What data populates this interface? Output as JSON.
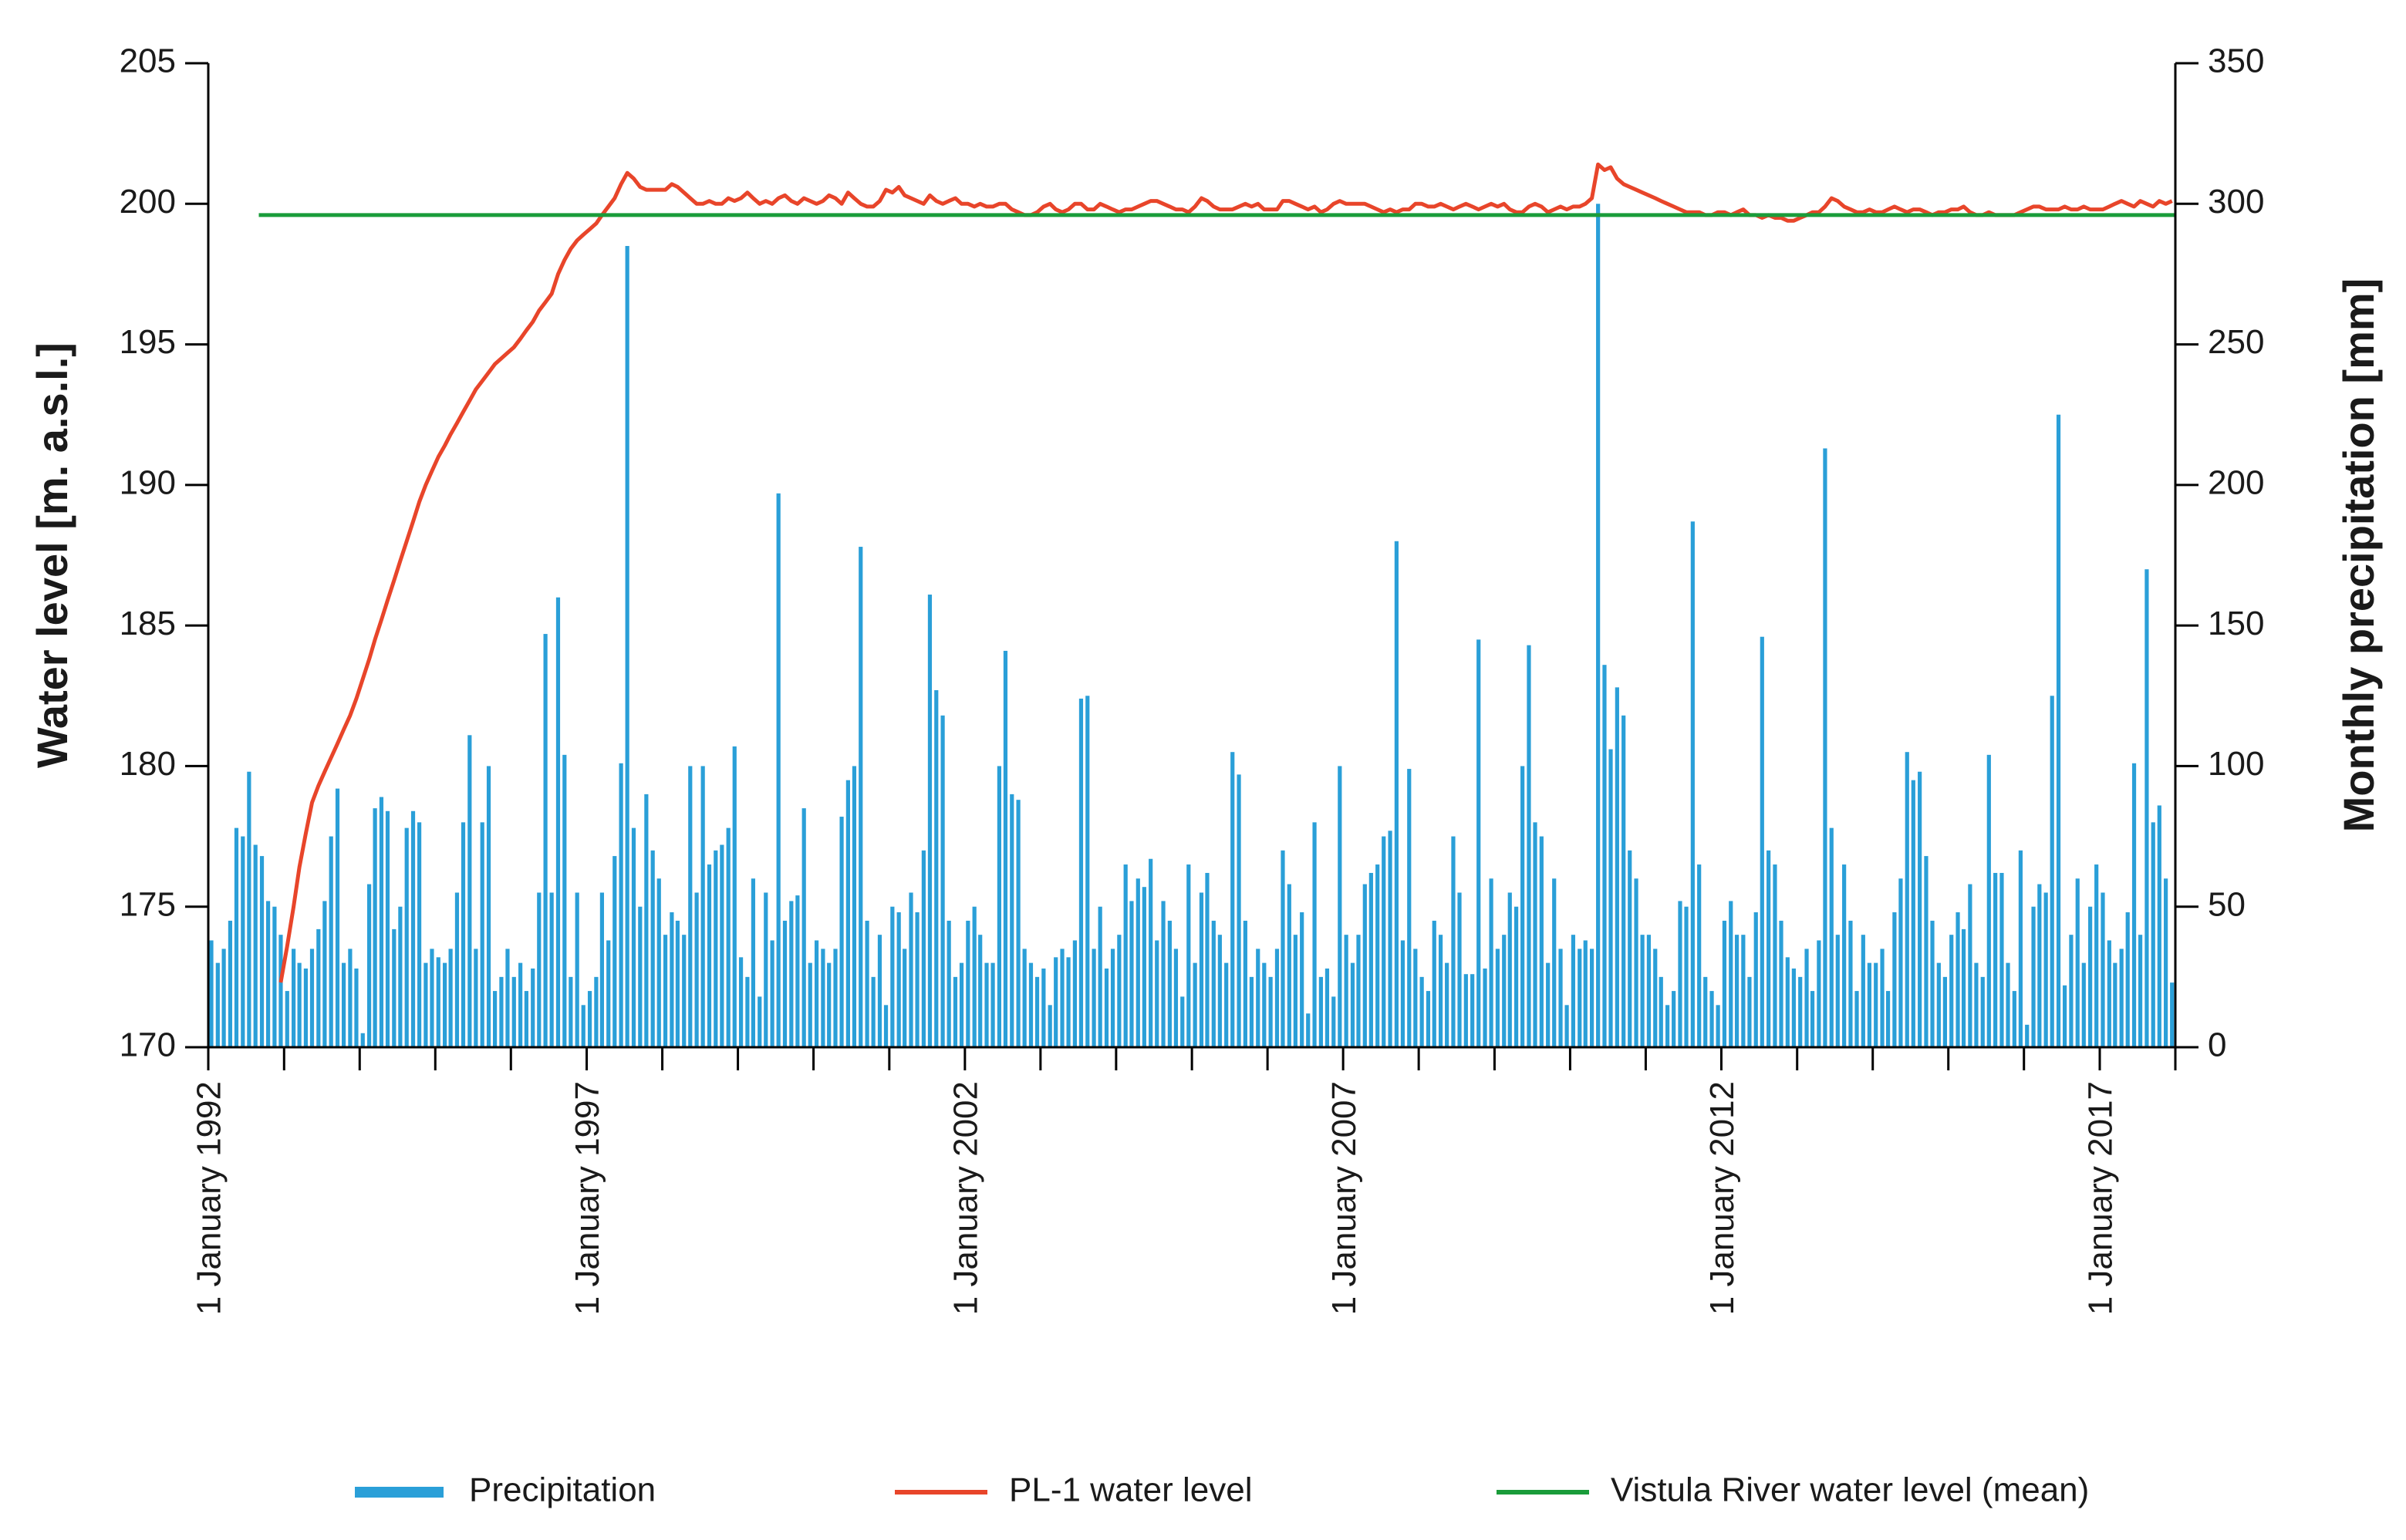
{
  "chart_data": {
    "type": "bar",
    "y_label": "Water level [m. a.s.l.]",
    "y2_label": "Monthly precipitation [mm]",
    "xlim": [
      "1992-01-01",
      "2018-01-01"
    ],
    "ylim": [
      170,
      205
    ],
    "yticks": [
      170,
      175,
      180,
      185,
      190,
      195,
      200,
      205
    ],
    "y2lim": [
      0,
      350
    ],
    "y2ticks": [
      0,
      50,
      100,
      150,
      200,
      250,
      300,
      350
    ],
    "xticks": [
      {
        "value": "1992-01-01",
        "label": "1 January 1992"
      },
      {
        "value": "1997-01-01",
        "label": "1 January 1997"
      },
      {
        "value": "2002-01-01",
        "label": "1 January 2002"
      },
      {
        "value": "2007-01-01",
        "label": "1 January 2007"
      },
      {
        "value": "2012-01-01",
        "label": "1 January 2012"
      },
      {
        "value": "2017-01-01",
        "label": "1 January 2017"
      }
    ],
    "xminorticks": [
      "1993-01-01",
      "1994-01-01",
      "1995-01-01",
      "1996-01-01",
      "1998-01-01",
      "1999-01-01",
      "2000-01-01",
      "2001-01-01",
      "2003-01-01",
      "2004-01-01",
      "2005-01-01",
      "2006-01-01",
      "2008-01-01",
      "2009-01-01",
      "2010-01-01",
      "2011-01-01",
      "2013-01-01",
      "2014-01-01",
      "2015-01-01",
      "2016-01-01",
      "2018-01-01"
    ],
    "legend": "bottom",
    "x": [
      "1992-01",
      "1992-02",
      "1992-03",
      "1992-04",
      "1992-05",
      "1992-06",
      "1992-07",
      "1992-08",
      "1992-09",
      "1992-10",
      "1992-11",
      "1992-12",
      "1993-01",
      "1993-02",
      "1993-03",
      "1993-04",
      "1993-05",
      "1993-06",
      "1993-07",
      "1993-08",
      "1993-09",
      "1993-10",
      "1993-11",
      "1993-12",
      "1994-01",
      "1994-02",
      "1994-03",
      "1994-04",
      "1994-05",
      "1994-06",
      "1994-07",
      "1994-08",
      "1994-09",
      "1994-10",
      "1994-11",
      "1994-12",
      "1995-01",
      "1995-02",
      "1995-03",
      "1995-04",
      "1995-05",
      "1995-06",
      "1995-07",
      "1995-08",
      "1995-09",
      "1995-10",
      "1995-11",
      "1995-12",
      "1996-01",
      "1996-02",
      "1996-03",
      "1996-04",
      "1996-05",
      "1996-06",
      "1996-07",
      "1996-08",
      "1996-09",
      "1996-10",
      "1996-11",
      "1996-12",
      "1997-01",
      "1997-02",
      "1997-03",
      "1997-04",
      "1997-05",
      "1997-06",
      "1997-07",
      "1997-08",
      "1997-09",
      "1997-10",
      "1997-11",
      "1997-12",
      "1998-01",
      "1998-02",
      "1998-03",
      "1998-04",
      "1998-05",
      "1998-06",
      "1998-07",
      "1998-08",
      "1998-09",
      "1998-10",
      "1998-11",
      "1998-12",
      "1999-01",
      "1999-02",
      "1999-03",
      "1999-04",
      "1999-05",
      "1999-06",
      "1999-07",
      "1999-08",
      "1999-09",
      "1999-10",
      "1999-11",
      "1999-12",
      "2000-01",
      "2000-02",
      "2000-03",
      "2000-04",
      "2000-05",
      "2000-06",
      "2000-07",
      "2000-08",
      "2000-09",
      "2000-10",
      "2000-11",
      "2000-12",
      "2001-01",
      "2001-02",
      "2001-03",
      "2001-04",
      "2001-05",
      "2001-06",
      "2001-07",
      "2001-08",
      "2001-09",
      "2001-10",
      "2001-11",
      "2001-12",
      "2002-01",
      "2002-02",
      "2002-03",
      "2002-04",
      "2002-05",
      "2002-06",
      "2002-07",
      "2002-08",
      "2002-09",
      "2002-10",
      "2002-11",
      "2002-12",
      "2003-01",
      "2003-02",
      "2003-03",
      "2003-04",
      "2003-05",
      "2003-06",
      "2003-07",
      "2003-08",
      "2003-09",
      "2003-10",
      "2003-11",
      "2003-12",
      "2004-01",
      "2004-02",
      "2004-03",
      "2004-04",
      "2004-05",
      "2004-06",
      "2004-07",
      "2004-08",
      "2004-09",
      "2004-10",
      "2004-11",
      "2004-12",
      "2005-01",
      "2005-02",
      "2005-03",
      "2005-04",
      "2005-05",
      "2005-06",
      "2005-07",
      "2005-08",
      "2005-09",
      "2005-10",
      "2005-11",
      "2005-12",
      "2006-01",
      "2006-02",
      "2006-03",
      "2006-04",
      "2006-05",
      "2006-06",
      "2006-07",
      "2006-08",
      "2006-09",
      "2006-10",
      "2006-11",
      "2006-12",
      "2007-01",
      "2007-02",
      "2007-03",
      "2007-04",
      "2007-05",
      "2007-06",
      "2007-07",
      "2007-08",
      "2007-09",
      "2007-10",
      "2007-11",
      "2007-12",
      "2008-01",
      "2008-02",
      "2008-03",
      "2008-04",
      "2008-05",
      "2008-06",
      "2008-07",
      "2008-08",
      "2008-09",
      "2008-10",
      "2008-11",
      "2008-12",
      "2009-01",
      "2009-02",
      "2009-03",
      "2009-04",
      "2009-05",
      "2009-06",
      "2009-07",
      "2009-08",
      "2009-09",
      "2009-10",
      "2009-11",
      "2009-12",
      "2010-01",
      "2010-02",
      "2010-03",
      "2010-04",
      "2010-05",
      "2010-06",
      "2010-07",
      "2010-08",
      "2010-09",
      "2010-10",
      "2010-11",
      "2010-12",
      "2011-01",
      "2011-02",
      "2011-03",
      "2011-04",
      "2011-05",
      "2011-06",
      "2011-07",
      "2011-08",
      "2011-09",
      "2011-10",
      "2011-11",
      "2011-12",
      "2012-01",
      "2012-02",
      "2012-03",
      "2012-04",
      "2012-05",
      "2012-06",
      "2012-07",
      "2012-08",
      "2012-09",
      "2012-10",
      "2012-11",
      "2012-12",
      "2013-01",
      "2013-02",
      "2013-03",
      "2013-04",
      "2013-05",
      "2013-06",
      "2013-07",
      "2013-08",
      "2013-09",
      "2013-10",
      "2013-11",
      "2013-12",
      "2014-01",
      "2014-02",
      "2014-03",
      "2014-04",
      "2014-05",
      "2014-06",
      "2014-07",
      "2014-08",
      "2014-09",
      "2014-10",
      "2014-11",
      "2014-12",
      "2015-01",
      "2015-02",
      "2015-03",
      "2015-04",
      "2015-05",
      "2015-06",
      "2015-07",
      "2015-08",
      "2015-09",
      "2015-10",
      "2015-11",
      "2015-12",
      "2016-01",
      "2016-02",
      "2016-03",
      "2016-04",
      "2016-05",
      "2016-06",
      "2016-07",
      "2016-08",
      "2016-09",
      "2016-10",
      "2016-11",
      "2016-12",
      "2017-01",
      "2017-02",
      "2017-03",
      "2017-04",
      "2017-05",
      "2017-06",
      "2017-07",
      "2017-08",
      "2017-09",
      "2017-10",
      "2017-11",
      "2017-12"
    ],
    "series": [
      {
        "name": "Precipitation",
        "type": "bar",
        "axis": "y2",
        "color": "#2a9fd8",
        "values": [
          38,
          30,
          35,
          45,
          78,
          75,
          98,
          72,
          68,
          52,
          50,
          40,
          20,
          35,
          30,
          28,
          35,
          42,
          52,
          75,
          92,
          30,
          35,
          28,
          5,
          58,
          85,
          89,
          84,
          42,
          50,
          78,
          84,
          80,
          30,
          35,
          32,
          30,
          35,
          55,
          80,
          111,
          35,
          80,
          100,
          20,
          25,
          35,
          25,
          30,
          20,
          28,
          55,
          147,
          55,
          160,
          104,
          25,
          55,
          15,
          20,
          25,
          55,
          38,
          68,
          101,
          285,
          78,
          50,
          90,
          70,
          60,
          40,
          48,
          45,
          40,
          100,
          55,
          100,
          65,
          70,
          72,
          78,
          107,
          32,
          25,
          60,
          18,
          55,
          38,
          197,
          45,
          52,
          54,
          85,
          30,
          38,
          35,
          30,
          35,
          82,
          95,
          100,
          178,
          45,
          25,
          40,
          15,
          50,
          48,
          35,
          55,
          48,
          70,
          161,
          127,
          118,
          45,
          25,
          30,
          45,
          50,
          40,
          30,
          30,
          100,
          141,
          90,
          88,
          35,
          30,
          25,
          28,
          15,
          32,
          35,
          32,
          38,
          124,
          125,
          35,
          50,
          28,
          35,
          40,
          65,
          52,
          60,
          57,
          67,
          38,
          52,
          45,
          35,
          18,
          65,
          30,
          55,
          62,
          45,
          40,
          30,
          105,
          97,
          45,
          25,
          35,
          30,
          25,
          35,
          70,
          58,
          40,
          48,
          12,
          80,
          25,
          28,
          18,
          100,
          40,
          30,
          40,
          58,
          62,
          65,
          75,
          77,
          180,
          38,
          99,
          35,
          25,
          20,
          45,
          40,
          30,
          75,
          55,
          26,
          26,
          145,
          28,
          60,
          35,
          40,
          55,
          50,
          100,
          143,
          80,
          75,
          30,
          60,
          35,
          15,
          40,
          35,
          38,
          35,
          300,
          136,
          106,
          128,
          118,
          70,
          60,
          40,
          40,
          35,
          25,
          15,
          20,
          52,
          50,
          187,
          65,
          25,
          20,
          15,
          45,
          52,
          40,
          40,
          25,
          48,
          146,
          70,
          65,
          45,
          32,
          28,
          25,
          35,
          20,
          38,
          213,
          78,
          40,
          65,
          45,
          20,
          40,
          30,
          30,
          35,
          20,
          48,
          60,
          105,
          95,
          98,
          68,
          45,
          30,
          25,
          40,
          48,
          42,
          58,
          30,
          25,
          104,
          62,
          62,
          30,
          20,
          70,
          8,
          50,
          58,
          55,
          125,
          225,
          22,
          40,
          60,
          30,
          50,
          65,
          55,
          38,
          30,
          35,
          48,
          101,
          40,
          170,
          80,
          86,
          60,
          23
        ]
      },
      {
        "name": "PL-1 water level",
        "type": "line",
        "axis": "y",
        "color": "#e8452a",
        "values": [
          null,
          null,
          null,
          null,
          null,
          null,
          null,
          null,
          null,
          null,
          null,
          172.3,
          173.6,
          175.0,
          176.4,
          177.6,
          178.7,
          179.3,
          179.8,
          180.3,
          180.8,
          181.3,
          181.8,
          182.4,
          183.1,
          183.8,
          184.5,
          185.2,
          185.9,
          186.6,
          187.3,
          188.0,
          188.7,
          189.4,
          190.0,
          190.5,
          191.0,
          191.4,
          191.8,
          192.2,
          192.6,
          193.0,
          193.4,
          193.7,
          194.0,
          194.3,
          194.5,
          194.7,
          194.9,
          195.2,
          195.5,
          195.8,
          196.2,
          196.5,
          196.8,
          197.5,
          198.0,
          198.4,
          198.7,
          198.9,
          199.1,
          199.3,
          199.6,
          199.9,
          200.2,
          200.7,
          201.1,
          200.9,
          200.6,
          200.5,
          200.5,
          200.5,
          200.5,
          200.7,
          200.6,
          200.4,
          200.2,
          200.0,
          200.0,
          200.1,
          200.0,
          200.0,
          200.2,
          200.1,
          200.2,
          200.4,
          200.2,
          200.0,
          200.1,
          200.0,
          200.2,
          200.3,
          200.1,
          200.0,
          200.2,
          200.1,
          200.0,
          200.1,
          200.3,
          200.2,
          200.0,
          200.4,
          200.2,
          200.0,
          199.9,
          199.9,
          200.1,
          200.5,
          200.4,
          200.6,
          200.3,
          200.2,
          200.1,
          200.0,
          200.3,
          200.1,
          200.0,
          200.1,
          200.2,
          200.0,
          200.0,
          199.9,
          200.0,
          199.9,
          199.9,
          200.0,
          200.0,
          199.8,
          199.7,
          199.6,
          199.6,
          199.7,
          199.9,
          200.0,
          199.8,
          199.7,
          199.8,
          200.0,
          200.0,
          199.8,
          199.8,
          200.0,
          199.9,
          199.8,
          199.7,
          199.8,
          199.8,
          199.9,
          200.0,
          200.1,
          200.1,
          200.0,
          199.9,
          199.8,
          199.8,
          199.7,
          199.9,
          200.2,
          200.1,
          199.9,
          199.8,
          199.8,
          199.8,
          199.9,
          200.0,
          199.9,
          200.0,
          199.8,
          199.8,
          199.8,
          200.1,
          200.1,
          200.0,
          199.9,
          199.8,
          199.9,
          199.7,
          199.8,
          200.0,
          200.1,
          200.0,
          200.0,
          200.0,
          200.0,
          199.9,
          199.8,
          199.7,
          199.8,
          199.7,
          199.8,
          199.8,
          200.0,
          200.0,
          199.9,
          199.9,
          200.0,
          199.9,
          199.8,
          199.9,
          200.0,
          199.9,
          199.8,
          199.9,
          200.0,
          199.9,
          200.0,
          199.8,
          199.7,
          199.7,
          199.9,
          200.0,
          199.9,
          199.7,
          199.8,
          199.9,
          199.8,
          199.9,
          199.9,
          200.0,
          200.2,
          201.4,
          201.2,
          201.3,
          200.9,
          200.7,
          200.6,
          200.5,
          200.4,
          200.3,
          200.2,
          200.1,
          200.0,
          199.9,
          199.8,
          199.7,
          199.7,
          199.7,
          199.6,
          199.6,
          199.7,
          199.7,
          199.6,
          199.7,
          199.8,
          199.6,
          199.6,
          199.5,
          199.6,
          199.5,
          199.5,
          199.4,
          199.4,
          199.5,
          199.6,
          199.7,
          199.7,
          199.9,
          200.2,
          200.1,
          199.9,
          199.8,
          199.7,
          199.7,
          199.8,
          199.7,
          199.7,
          199.8,
          199.9,
          199.8,
          199.7,
          199.8,
          199.8,
          199.7,
          199.6,
          199.7,
          199.7,
          199.8,
          199.8,
          199.9,
          199.7,
          199.6,
          199.6,
          199.7,
          199.6,
          199.6,
          199.6,
          199.6,
          199.7,
          199.8,
          199.9,
          199.9,
          199.8,
          199.8,
          199.8,
          199.9,
          199.8,
          199.8,
          199.9,
          199.8,
          199.8,
          199.8,
          199.9,
          200.0,
          200.1,
          200.0,
          199.9,
          200.1,
          200.0,
          199.9,
          200.1,
          200.0,
          200.1
        ]
      },
      {
        "name": "Vistula River water level (mean)",
        "type": "line",
        "axis": "y",
        "color": "#1a9c3a",
        "x": [
          "1992-09",
          "2018-01"
        ],
        "values": [
          199.6,
          199.6
        ]
      }
    ]
  }
}
